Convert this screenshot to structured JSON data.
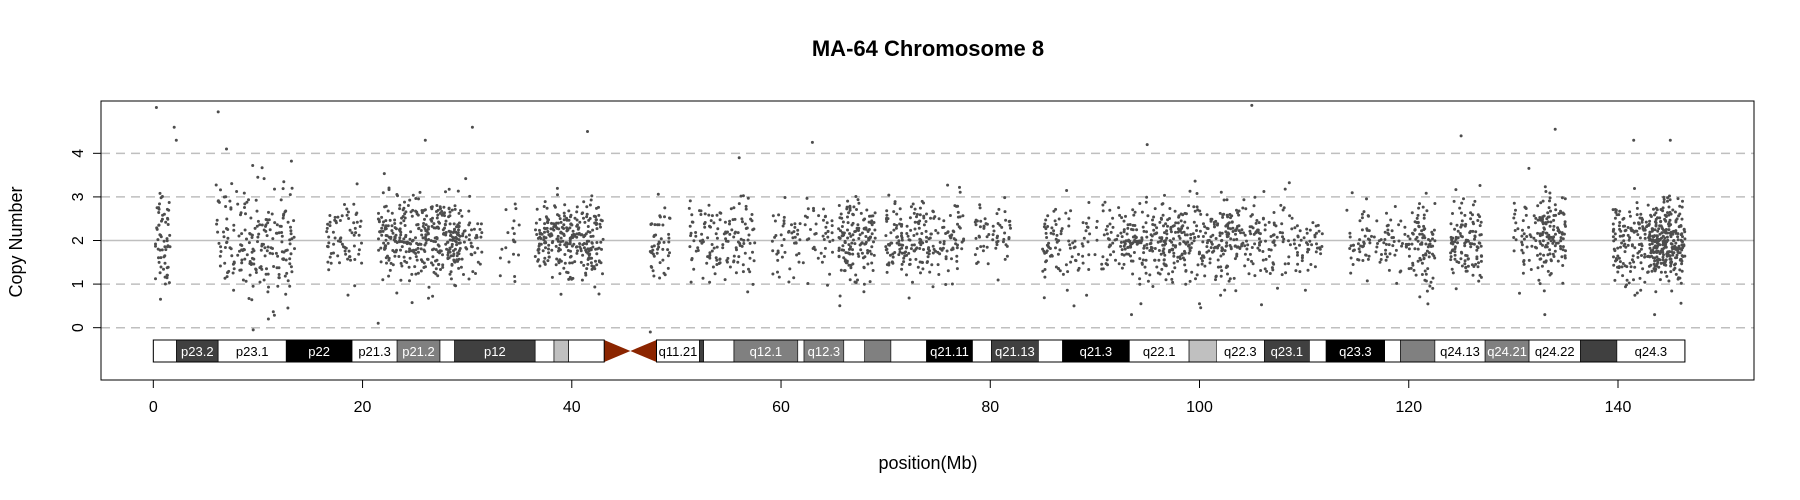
{
  "chart_data": {
    "type": "scatter",
    "title": "MA-64  Chromosome 8",
    "xlabel": "position(Mb)",
    "ylabel": "Copy Number",
    "xlim": [
      -5,
      153
    ],
    "ylim": [
      -1.2,
      5.2
    ],
    "xticks": [
      0,
      20,
      40,
      60,
      80,
      100,
      120,
      140
    ],
    "yticks": [
      0,
      1,
      2,
      3,
      4
    ],
    "hlines_dashed": [
      0,
      1,
      3,
      4
    ],
    "hline_solid": 2,
    "grid": false,
    "legend": "none",
    "colors": {
      "points": "#4d4d4d",
      "centromere": "#8b2500",
      "grid_dashed": "#bfbfbf",
      "grid_solid": "#bfbfbf"
    },
    "bands": [
      {
        "name": "p23.3",
        "start": 0.0,
        "end": 2.2,
        "fill": "#ffffff",
        "text": "#000000",
        "label": ""
      },
      {
        "name": "p23.2",
        "start": 2.2,
        "end": 6.2,
        "fill": "#404040",
        "text": "#ffffff",
        "label": "p23.2"
      },
      {
        "name": "p23.1",
        "start": 6.2,
        "end": 12.7,
        "fill": "#ffffff",
        "text": "#000000",
        "label": "p23.1"
      },
      {
        "name": "p22",
        "start": 12.7,
        "end": 19.0,
        "fill": "#000000",
        "text": "#ffffff",
        "label": "p22"
      },
      {
        "name": "p21.3",
        "start": 19.0,
        "end": 23.3,
        "fill": "#ffffff",
        "text": "#000000",
        "label": "p21.3"
      },
      {
        "name": "p21.2",
        "start": 23.3,
        "end": 27.4,
        "fill": "#808080",
        "text": "#ffffff",
        "label": "p21.2"
      },
      {
        "name": "p21.1",
        "start": 27.4,
        "end": 28.8,
        "fill": "#ffffff",
        "text": "#000000",
        "label": ""
      },
      {
        "name": "p12",
        "start": 28.8,
        "end": 36.5,
        "fill": "#404040",
        "text": "#ffffff",
        "label": "p12"
      },
      {
        "name": "p11.23",
        "start": 36.5,
        "end": 38.3,
        "fill": "#ffffff",
        "text": "#000000",
        "label": ""
      },
      {
        "name": "p11.22",
        "start": 38.3,
        "end": 39.7,
        "fill": "#c0c0c0",
        "text": "#000000",
        "label": ""
      },
      {
        "name": "p11.21",
        "start": 39.7,
        "end": 43.1,
        "fill": "#ffffff",
        "text": "#000000",
        "label": ""
      },
      {
        "name": "p11.1",
        "start": 43.1,
        "end": 45.6,
        "fill": "centromere",
        "text": "#000000",
        "label": ""
      },
      {
        "name": "q11.1",
        "start": 45.6,
        "end": 48.1,
        "fill": "centromere",
        "text": "#000000",
        "label": ""
      },
      {
        "name": "q11.21",
        "start": 48.1,
        "end": 52.2,
        "fill": "#ffffff",
        "text": "#000000",
        "label": "q11.21"
      },
      {
        "name": "q11.22",
        "start": 52.2,
        "end": 52.6,
        "fill": "#404040",
        "text": "#ffffff",
        "label": ""
      },
      {
        "name": "q11.23",
        "start": 52.6,
        "end": 55.5,
        "fill": "#ffffff",
        "text": "#000000",
        "label": ""
      },
      {
        "name": "q12.1",
        "start": 55.5,
        "end": 61.6,
        "fill": "#808080",
        "text": "#ffffff",
        "label": "q12.1"
      },
      {
        "name": "q12.2",
        "start": 61.6,
        "end": 62.2,
        "fill": "#ffffff",
        "text": "#000000",
        "label": ""
      },
      {
        "name": "q12.3",
        "start": 62.2,
        "end": 66.0,
        "fill": "#808080",
        "text": "#ffffff",
        "label": "q12.3"
      },
      {
        "name": "q13.1",
        "start": 66.0,
        "end": 68.0,
        "fill": "#ffffff",
        "text": "#000000",
        "label": ""
      },
      {
        "name": "q13.2",
        "start": 68.0,
        "end": 70.5,
        "fill": "#808080",
        "text": "#ffffff",
        "label": ""
      },
      {
        "name": "q13.3",
        "start": 70.5,
        "end": 73.9,
        "fill": "#ffffff",
        "text": "#000000",
        "label": ""
      },
      {
        "name": "q21.11",
        "start": 73.9,
        "end": 78.3,
        "fill": "#000000",
        "text": "#ffffff",
        "label": "q21.11"
      },
      {
        "name": "q21.12",
        "start": 78.3,
        "end": 80.1,
        "fill": "#ffffff",
        "text": "#000000",
        "label": ""
      },
      {
        "name": "q21.13",
        "start": 80.1,
        "end": 84.6,
        "fill": "#404040",
        "text": "#ffffff",
        "label": "q21.13"
      },
      {
        "name": "q21.2",
        "start": 84.6,
        "end": 86.9,
        "fill": "#ffffff",
        "text": "#000000",
        "label": ""
      },
      {
        "name": "q21.3",
        "start": 86.9,
        "end": 93.3,
        "fill": "#000000",
        "text": "#ffffff",
        "label": "q21.3"
      },
      {
        "name": "q22.1",
        "start": 93.3,
        "end": 99.0,
        "fill": "#ffffff",
        "text": "#000000",
        "label": "q22.1"
      },
      {
        "name": "q22.2",
        "start": 99.0,
        "end": 101.6,
        "fill": "#c0c0c0",
        "text": "#000000",
        "label": ""
      },
      {
        "name": "q22.3",
        "start": 101.6,
        "end": 106.2,
        "fill": "#ffffff",
        "text": "#000000",
        "label": "q22.3"
      },
      {
        "name": "q23.1",
        "start": 106.2,
        "end": 110.5,
        "fill": "#404040",
        "text": "#ffffff",
        "label": "q23.1"
      },
      {
        "name": "q23.2",
        "start": 110.5,
        "end": 112.1,
        "fill": "#ffffff",
        "text": "#000000",
        "label": ""
      },
      {
        "name": "q23.3",
        "start": 112.1,
        "end": 117.7,
        "fill": "#000000",
        "text": "#ffffff",
        "label": "q23.3"
      },
      {
        "name": "q24.11",
        "start": 117.7,
        "end": 119.2,
        "fill": "#ffffff",
        "text": "#000000",
        "label": ""
      },
      {
        "name": "q24.12",
        "start": 119.2,
        "end": 122.5,
        "fill": "#808080",
        "text": "#ffffff",
        "label": ""
      },
      {
        "name": "q24.13",
        "start": 122.5,
        "end": 127.3,
        "fill": "#ffffff",
        "text": "#000000",
        "label": "q24.13"
      },
      {
        "name": "q24.21",
        "start": 127.3,
        "end": 131.5,
        "fill": "#808080",
        "text": "#ffffff",
        "label": "q24.21"
      },
      {
        "name": "q24.22",
        "start": 131.5,
        "end": 136.4,
        "fill": "#ffffff",
        "text": "#000000",
        "label": "q24.22"
      },
      {
        "name": "q24.23",
        "start": 136.4,
        "end": 139.9,
        "fill": "#404040",
        "text": "#ffffff",
        "label": ""
      },
      {
        "name": "q24.3",
        "start": 139.9,
        "end": 146.4,
        "fill": "#ffffff",
        "text": "#000000",
        "label": "q24.3"
      }
    ],
    "clusters": [
      [
        0.2,
        1.6,
        60,
        2.1,
        0.6
      ],
      [
        6.0,
        9.5,
        90,
        2.0,
        0.6
      ],
      [
        9.5,
        13.5,
        120,
        1.95,
        0.65
      ],
      [
        16.5,
        20.0,
        70,
        2.05,
        0.45
      ],
      [
        21.5,
        27.0,
        230,
        2.0,
        0.5
      ],
      [
        27.0,
        29.5,
        140,
        2.05,
        0.45
      ],
      [
        29.5,
        31.5,
        40,
        2.0,
        0.45
      ],
      [
        33.0,
        35.0,
        20,
        1.9,
        0.4
      ],
      [
        36.5,
        40.0,
        160,
        2.05,
        0.45
      ],
      [
        40.0,
        43.0,
        130,
        1.95,
        0.45
      ],
      [
        47.5,
        49.5,
        50,
        1.95,
        0.5
      ],
      [
        51.0,
        54.0,
        60,
        1.95,
        0.45
      ],
      [
        54.0,
        57.5,
        80,
        2.0,
        0.45
      ],
      [
        59.0,
        62.5,
        50,
        2.0,
        0.45
      ],
      [
        62.5,
        65.0,
        40,
        2.05,
        0.45
      ],
      [
        65.5,
        69.0,
        150,
        2.0,
        0.45
      ],
      [
        70.0,
        73.5,
        120,
        2.0,
        0.45
      ],
      [
        73.5,
        77.5,
        100,
        2.05,
        0.45
      ],
      [
        78.5,
        82.0,
        60,
        2.0,
        0.45
      ],
      [
        85.0,
        89.5,
        90,
        1.9,
        0.5
      ],
      [
        90.0,
        92.5,
        40,
        2.0,
        0.45
      ],
      [
        92.5,
        97.0,
        160,
        1.9,
        0.45
      ],
      [
        97.0,
        101.5,
        150,
        1.95,
        0.45
      ],
      [
        101.5,
        104.5,
        110,
        2.05,
        0.5
      ],
      [
        104.5,
        110.5,
        120,
        2.05,
        0.45
      ],
      [
        110.5,
        112.0,
        20,
        2.05,
        0.4
      ],
      [
        114.0,
        117.0,
        50,
        2.0,
        0.4
      ],
      [
        117.0,
        120.5,
        60,
        1.95,
        0.45
      ],
      [
        120.5,
        122.5,
        80,
        1.9,
        0.45
      ],
      [
        124.0,
        127.0,
        120,
        1.95,
        0.5
      ],
      [
        130.0,
        132.5,
        50,
        2.05,
        0.45
      ],
      [
        132.5,
        135.0,
        120,
        2.1,
        0.5
      ],
      [
        139.5,
        143.0,
        140,
        1.95,
        0.5
      ],
      [
        143.0,
        146.4,
        300,
        1.95,
        0.45
      ]
    ],
    "outliers": [
      [
        0.3,
        5.05
      ],
      [
        2.0,
        4.6
      ],
      [
        2.2,
        4.3
      ],
      [
        6.2,
        4.95
      ],
      [
        7.0,
        4.1
      ],
      [
        26.0,
        4.3
      ],
      [
        30.5,
        4.6
      ],
      [
        41.5,
        4.5
      ],
      [
        47.5,
        -0.1
      ],
      [
        56.0,
        3.9
      ],
      [
        63.0,
        4.25
      ],
      [
        93.5,
        0.3
      ],
      [
        95.0,
        4.2
      ],
      [
        100.0,
        0.55
      ],
      [
        105.0,
        5.1
      ],
      [
        125.0,
        4.4
      ],
      [
        133.0,
        0.3
      ],
      [
        134.0,
        4.55
      ],
      [
        141.5,
        4.3
      ],
      [
        145.0,
        4.3
      ],
      [
        143.5,
        0.3
      ],
      [
        21.5,
        0.1
      ],
      [
        11.0,
        0.2
      ],
      [
        88.0,
        0.5
      ]
    ]
  }
}
